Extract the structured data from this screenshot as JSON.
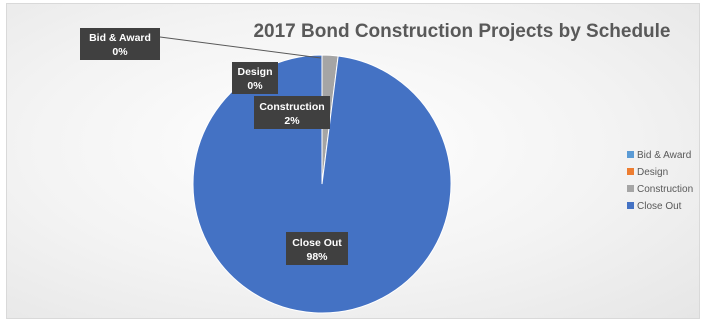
{
  "chart_data": {
    "type": "pie",
    "title": "2017 Bond Construction Projects by Schedule",
    "categories": [
      "Bid & Award",
      "Design",
      "Construction",
      "Close Out"
    ],
    "values": [
      0,
      0,
      2,
      98
    ],
    "value_unit": "%",
    "data_labels": [
      {
        "name": "Bid & Award",
        "value": "0%"
      },
      {
        "name": "Design",
        "value": "0%"
      },
      {
        "name": "Construction",
        "value": "2%"
      },
      {
        "name": "Close Out",
        "value": "98%"
      }
    ],
    "colors": [
      "#5b9bd5",
      "#ed7d31",
      "#a5a5a5",
      "#4472c4"
    ],
    "legend": {
      "position": "right",
      "items": [
        "Bid & Award",
        "Design",
        "Construction",
        "Close Out"
      ]
    }
  }
}
